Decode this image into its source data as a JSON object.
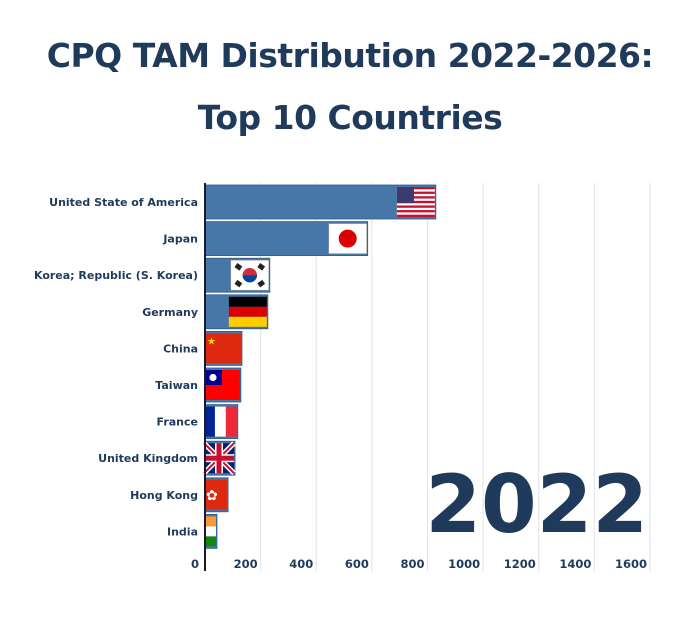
{
  "title_line1": "CPQ TAM Distribution 2022-2026:",
  "title_line2": "Top 10 Countries",
  "chart_data": {
    "type": "bar",
    "orientation": "horizontal",
    "title": "CPQ TAM Distribution 2022-2026: Top 10 Countries",
    "year_label": "2022",
    "categories": [
      "United State of America",
      "Japan",
      "Korea; Republic (S. Korea)",
      "Germany",
      "China",
      "Taiwan",
      "France",
      "United Kingdom",
      "Hong Kong",
      "India"
    ],
    "values": [
      830,
      585,
      233,
      226,
      133,
      129,
      118,
      108,
      83,
      43
    ],
    "flags": [
      "us-flag",
      "japan-flag",
      "korea-flag",
      "germany-flag",
      "china-flag",
      "taiwan-flag",
      "france-flag",
      "uk-flag",
      "hongkong-flag",
      "india-flag"
    ],
    "xlabel": "",
    "ylabel": "",
    "xlim": [
      0,
      1600
    ],
    "xticks": [
      0,
      200,
      400,
      600,
      800,
      1000,
      1200,
      1400,
      1600
    ],
    "grid": true,
    "bar_color": "#4677a8",
    "text_color": "#1f3a5a",
    "grid_color": "#e3e7ec"
  }
}
